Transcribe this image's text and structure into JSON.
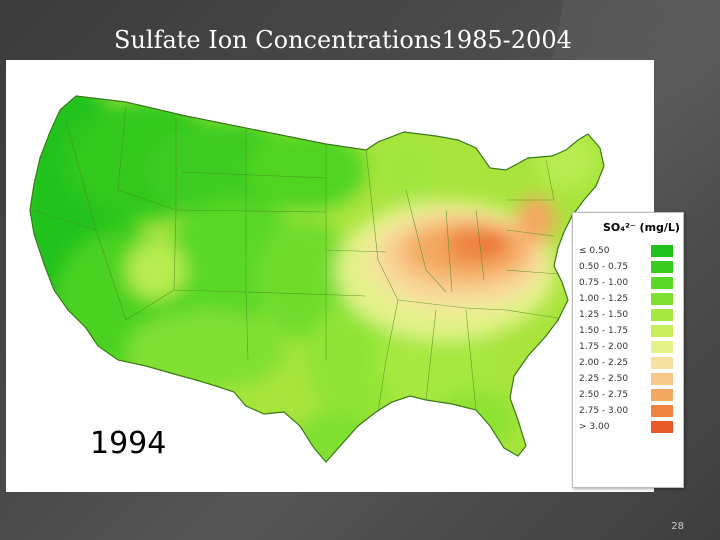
{
  "slide": {
    "title": "Sulfate Ion Concentrations1985-2004",
    "year": "1994",
    "page_number": "28"
  },
  "legend": {
    "title": "SO₄²⁻ (mg/L)",
    "items": [
      {
        "label": "≤ 0.50",
        "color": "#22c21a"
      },
      {
        "label": "0.50 - 0.75",
        "color": "#38cc1e"
      },
      {
        "label": "0.75 - 1.00",
        "color": "#5ad826"
      },
      {
        "label": "1.00 - 1.25",
        "color": "#80e030"
      },
      {
        "label": "1.25 - 1.50",
        "color": "#a6e840"
      },
      {
        "label": "1.50 - 1.75",
        "color": "#c8ee5a"
      },
      {
        "label": "1.75 - 2.00",
        "color": "#e4f28a"
      },
      {
        "label": "2.00 - 2.25",
        "color": "#f8e0a0"
      },
      {
        "label": "2.25 - 2.50",
        "color": "#f8c888"
      },
      {
        "label": "2.50 - 2.75",
        "color": "#f4a860"
      },
      {
        "label": "2.75 - 3.00",
        "color": "#ee8440"
      },
      {
        "label": "> 3.00",
        "color": "#e85a28"
      }
    ]
  }
}
